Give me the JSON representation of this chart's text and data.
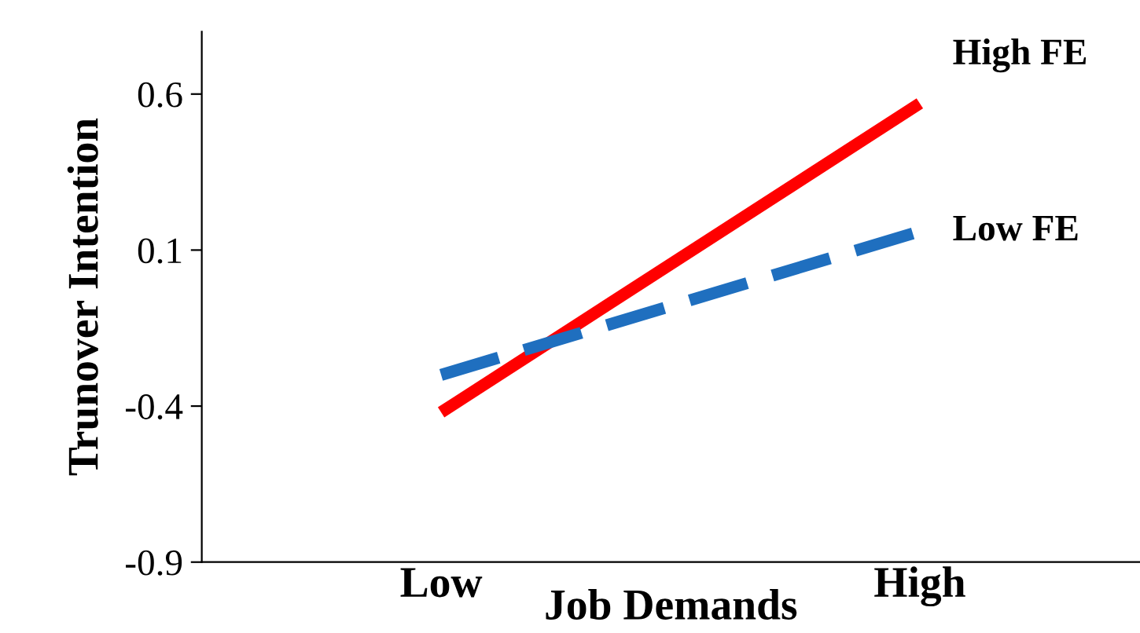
{
  "chart_data": {
    "type": "line",
    "xlabel": "Job Demands",
    "ylabel": "Trunover Intention",
    "categories": [
      "Low",
      "High"
    ],
    "series": [
      {
        "name": "High FE",
        "color": "#ff0000",
        "values": [
          -0.42,
          0.57
        ],
        "line_style": "solid"
      },
      {
        "name": "Low FE",
        "color": "#1f6fbf",
        "values": [
          -0.3,
          0.16
        ],
        "line_style": "dashed"
      }
    ],
    "ylim": [
      -0.9,
      0.8
    ],
    "yticks": [
      -0.9,
      -0.4,
      0.1,
      0.6
    ],
    "grid": false,
    "legend": false,
    "marker": "none"
  }
}
